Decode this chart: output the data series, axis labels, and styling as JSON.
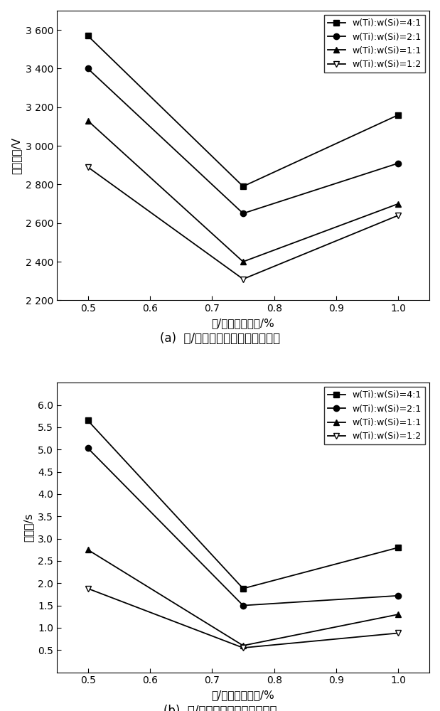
{
  "x_values": [
    0.5,
    0.75,
    1.0
  ],
  "chart_a": {
    "title": "(a)  钛/硅总含量与峰值电压的关系",
    "ylabel": "峰值电压/V",
    "xlabel": "钛/硅总质量分数/%",
    "ylim": [
      2200,
      3700
    ],
    "yticks": [
      2200,
      2400,
      2600,
      2800,
      3000,
      3200,
      3400,
      3600
    ],
    "ytick_labels": [
      "2 200",
      "2 400",
      "2 600",
      "2 800",
      "3 000",
      "3 200",
      "3 400",
      "3 600"
    ],
    "xticks": [
      0.5,
      0.6,
      0.7,
      0.8,
      0.9,
      1.0
    ],
    "series": [
      {
        "label": "w(Ti):w(Si)=4:1",
        "values": [
          3570,
          2790,
          3160
        ],
        "marker": "s",
        "filled": true
      },
      {
        "label": "w(Ti):w(Si)=2:1",
        "values": [
          3400,
          2650,
          2910
        ],
        "marker": "o",
        "filled": true
      },
      {
        "label": "w(Ti):w(Si)=1:1",
        "values": [
          3130,
          2400,
          2700
        ],
        "marker": "^",
        "filled": true
      },
      {
        "label": "w(Ti):w(Si)=1:2",
        "values": [
          2890,
          2310,
          2640
        ],
        "marker": "v",
        "filled": false
      }
    ]
  },
  "chart_b": {
    "title": "(b)  钛/硅总含量与半衰期的关系",
    "ylabel": "半衰期/s",
    "xlabel": "钛/硅总质量分数/%",
    "ylim": [
      0.0,
      6.5
    ],
    "ytick_min": 0.5,
    "ytick_max": 6.0,
    "ytick_step": 0.5,
    "xticks": [
      0.5,
      0.6,
      0.7,
      0.8,
      0.9,
      1.0
    ],
    "series": [
      {
        "label": "w(Ti):w(Si)=4:1",
        "values": [
          5.65,
          1.88,
          2.8
        ],
        "marker": "s",
        "filled": true
      },
      {
        "label": "w(Ti):w(Si)=2:1",
        "values": [
          5.03,
          1.5,
          1.72
        ],
        "marker": "o",
        "filled": true
      },
      {
        "label": "w(Ti):w(Si)=1:1",
        "values": [
          2.75,
          0.6,
          1.3
        ],
        "marker": "^",
        "filled": true
      },
      {
        "label": "w(Ti):w(Si)=1:2",
        "values": [
          1.88,
          0.55,
          0.88
        ],
        "marker": "v",
        "filled": false
      }
    ]
  },
  "line_color": "#000000",
  "font_size_label": 11,
  "font_size_tick": 10,
  "font_size_legend": 9,
  "font_size_title": 12
}
